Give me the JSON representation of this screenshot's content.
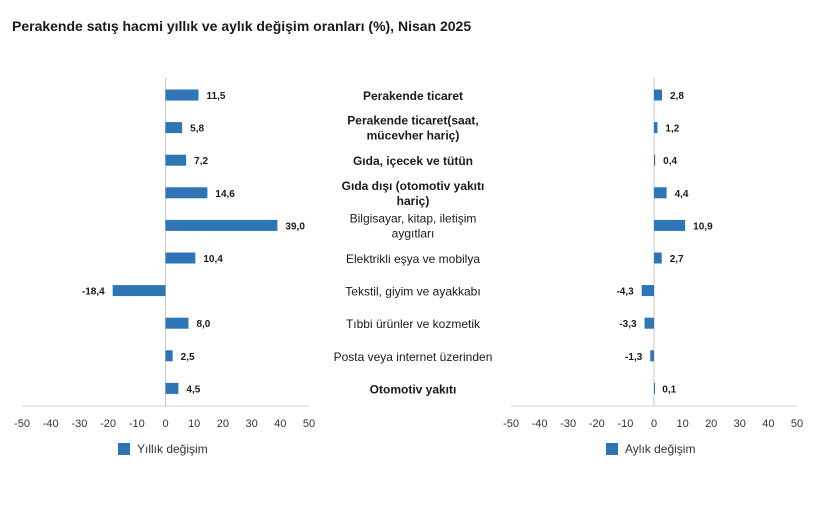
{
  "title": "Perakende satış hacmi yıllık ve aylık değişim oranları (%), Nisan 2025",
  "chart_data": {
    "type": "bar",
    "orientation": "horizontal",
    "categories": [
      {
        "lines": [
          "Perakende ticaret"
        ],
        "bold": true
      },
      {
        "lines": [
          "Perakende ticaret(saat,",
          "mücevher hariç)"
        ],
        "bold": true
      },
      {
        "lines": [
          "Gıda, içecek ve tütün"
        ],
        "bold": true
      },
      {
        "lines": [
          "Gıda dışı (otomotiv yakıtı",
          "hariç)"
        ],
        "bold": true
      },
      {
        "lines": [
          "Bilgisayar, kitap, iletişim",
          "aygıtları"
        ],
        "bold": false
      },
      {
        "lines": [
          "Elektrikli eşya ve mobilya"
        ],
        "bold": false
      },
      {
        "lines": [
          "Tekstil, giyim ve ayakkabı"
        ],
        "bold": false
      },
      {
        "lines": [
          "Tıbbi ürünler ve kozmetik"
        ],
        "bold": false
      },
      {
        "lines": [
          "Posta veya internet üzerinden"
        ],
        "bold": false
      },
      {
        "lines": [
          "Otomotiv yakıtı"
        ],
        "bold": true
      }
    ],
    "series": [
      {
        "name": "Yıllık değişim",
        "values": [
          11.5,
          5.8,
          7.2,
          14.6,
          39.0,
          10.4,
          -18.4,
          8.0,
          2.5,
          4.5
        ],
        "labels": [
          "11,5",
          "5,8",
          "7,2",
          "14,6",
          "39,0",
          "10,4",
          "-18,4",
          "8,0",
          "2,5",
          "4,5"
        ]
      },
      {
        "name": "Aylık değişim",
        "values": [
          2.8,
          1.2,
          0.4,
          4.4,
          10.9,
          2.7,
          -4.3,
          -3.3,
          -1.3,
          0.1
        ],
        "labels": [
          "2,8",
          "1,2",
          "0,4",
          "4,4",
          "10,9",
          "2,7",
          "-4,3",
          "-3,3",
          "-1,3",
          "0,1"
        ]
      }
    ],
    "xlim": [
      -50,
      50
    ],
    "ticks": [
      -50,
      -40,
      -30,
      -20,
      -10,
      0,
      10,
      20,
      30,
      40,
      50
    ],
    "color": "#2e75b6",
    "legend": "bottom-left"
  }
}
